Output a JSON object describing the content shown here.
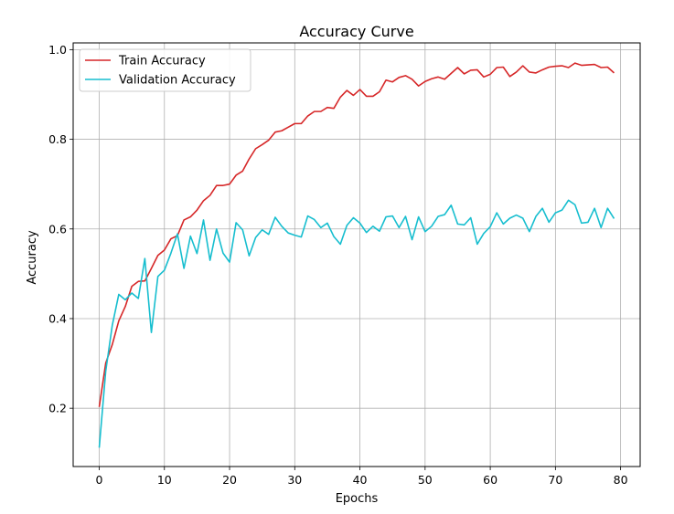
{
  "chart_data": {
    "type": "line",
    "title": "Accuracy Curve",
    "xlabel": "Epochs",
    "ylabel": "Accuracy",
    "xlim": [
      -4,
      83
    ],
    "ylim": [
      0.07,
      1.015
    ],
    "xticks": [
      0,
      10,
      20,
      30,
      40,
      50,
      60,
      70,
      80
    ],
    "yticks": [
      0.2,
      0.4,
      0.6,
      0.8,
      1.0
    ],
    "ytick_labels": [
      "0.2",
      "0.4",
      "0.6",
      "0.8",
      "1.0"
    ],
    "grid": true,
    "legend_position": "top-left",
    "x": [
      0,
      1,
      2,
      3,
      4,
      5,
      6,
      7,
      8,
      9,
      10,
      11,
      12,
      13,
      14,
      15,
      16,
      17,
      18,
      19,
      20,
      21,
      22,
      23,
      24,
      25,
      26,
      27,
      28,
      29,
      30,
      31,
      32,
      33,
      34,
      35,
      36,
      37,
      38,
      39,
      40,
      41,
      42,
      43,
      44,
      45,
      46,
      47,
      48,
      49,
      50,
      51,
      52,
      53,
      54,
      55,
      56,
      57,
      58,
      59,
      60,
      61,
      62,
      63,
      64,
      65,
      66,
      67,
      68,
      69,
      70,
      71,
      72,
      73,
      74,
      75,
      76,
      77,
      78,
      79
    ],
    "series": [
      {
        "name": "Train Accuracy",
        "color": "#d62728",
        "values": [
          0.203,
          0.301,
          0.342,
          0.395,
          0.427,
          0.472,
          0.483,
          0.484,
          0.512,
          0.541,
          0.553,
          0.578,
          0.585,
          0.62,
          0.627,
          0.642,
          0.663,
          0.675,
          0.697,
          0.697,
          0.7,
          0.72,
          0.729,
          0.756,
          0.779,
          0.788,
          0.798,
          0.816,
          0.819,
          0.827,
          0.835,
          0.835,
          0.852,
          0.862,
          0.862,
          0.871,
          0.869,
          0.894,
          0.909,
          0.898,
          0.911,
          0.896,
          0.896,
          0.906,
          0.932,
          0.928,
          0.938,
          0.942,
          0.934,
          0.919,
          0.929,
          0.935,
          0.939,
          0.934,
          0.947,
          0.96,
          0.946,
          0.954,
          0.955,
          0.939,
          0.945,
          0.96,
          0.961,
          0.94,
          0.95,
          0.964,
          0.95,
          0.948,
          0.955,
          0.961,
          0.963,
          0.964,
          0.96,
          0.97,
          0.965,
          0.966,
          0.967,
          0.96,
          0.961,
          0.948
        ]
      },
      {
        "name": "Validation Accuracy",
        "color": "#17becf",
        "values": [
          0.112,
          0.283,
          0.385,
          0.454,
          0.442,
          0.457,
          0.445,
          0.534,
          0.369,
          0.494,
          0.508,
          0.546,
          0.589,
          0.512,
          0.584,
          0.545,
          0.62,
          0.53,
          0.6,
          0.546,
          0.526,
          0.614,
          0.598,
          0.54,
          0.581,
          0.598,
          0.588,
          0.626,
          0.606,
          0.591,
          0.586,
          0.582,
          0.629,
          0.621,
          0.603,
          0.613,
          0.583,
          0.566,
          0.608,
          0.625,
          0.613,
          0.592,
          0.606,
          0.595,
          0.627,
          0.629,
          0.603,
          0.628,
          0.576,
          0.627,
          0.594,
          0.606,
          0.628,
          0.632,
          0.653,
          0.611,
          0.609,
          0.625,
          0.566,
          0.59,
          0.605,
          0.636,
          0.611,
          0.624,
          0.631,
          0.624,
          0.594,
          0.628,
          0.646,
          0.615,
          0.636,
          0.642,
          0.664,
          0.654,
          0.613,
          0.615,
          0.646,
          0.603,
          0.646,
          0.623
        ]
      }
    ]
  }
}
